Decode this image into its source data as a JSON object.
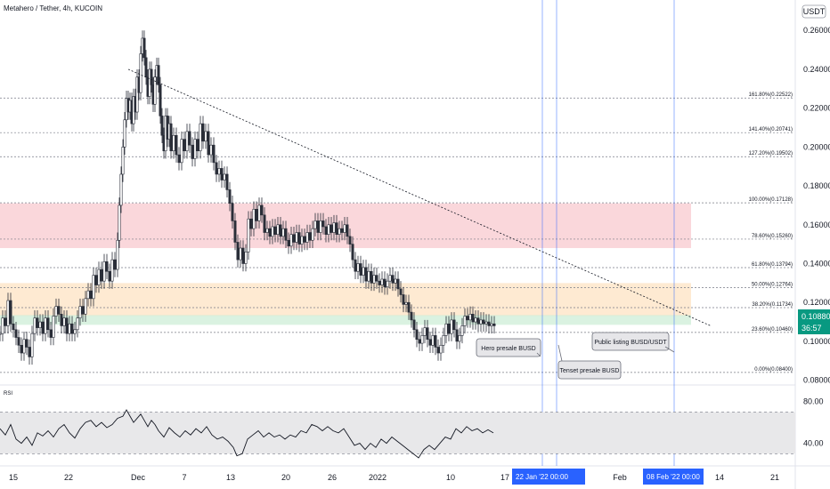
{
  "header": {
    "symbol_line": "Metahero / Tether, 4h, KUCOIN"
  },
  "currency_badge": "USDT",
  "colors": {
    "up": "#26a69a",
    "down": "#131722",
    "candle": "#2a2e39",
    "red_zone": "#f8c9cf",
    "orange_zone": "#fde3c3",
    "green_zone": "#cdeed7",
    "accent": "#2962ff",
    "rsi_band": "#e8e8ea",
    "price_label": "#089981"
  },
  "chart_data": [
    {
      "type": "candlestick",
      "title": "Metahero / Tether, 4h, KUCOIN",
      "y_axis": {
        "range": [
          0.078,
          0.272
        ],
        "ticks": [
          0.08,
          0.1,
          0.12,
          0.14,
          0.16,
          0.18,
          0.2,
          0.22,
          0.24,
          0.26
        ],
        "tick_labels": [
          "0.08000",
          "0.10000",
          "0.12000",
          "0.14000",
          "0.16000",
          "0.18000",
          "0.20000",
          "0.22000",
          "0.24000",
          "0.26000"
        ]
      },
      "x_axis": {
        "tick_labels": [
          "15",
          "22",
          "Dec",
          "7",
          "13",
          "20",
          "26",
          "2022",
          "10",
          "17",
          "Feb",
          "14",
          "21"
        ],
        "cursor_labels": [
          "22 Jan '22   00:00",
          "08 Feb '22   00:00"
        ]
      },
      "last_price": {
        "value": "0.10880",
        "countdown": "36:57"
      },
      "close_series": [
        [
          0,
          0.104
        ],
        [
          3,
          0.112
        ],
        [
          6,
          0.108
        ],
        [
          9,
          0.121
        ],
        [
          12,
          0.109
        ],
        [
          15,
          0.106
        ],
        [
          18,
          0.102
        ],
        [
          21,
          0.098
        ],
        [
          24,
          0.094
        ],
        [
          27,
          0.101
        ],
        [
          30,
          0.097
        ],
        [
          33,
          0.092
        ],
        [
          36,
          0.104
        ],
        [
          39,
          0.112
        ],
        [
          42,
          0.107
        ],
        [
          45,
          0.11
        ],
        [
          48,
          0.104
        ],
        [
          51,
          0.112
        ],
        [
          54,
          0.106
        ],
        [
          57,
          0.102
        ],
        [
          60,
          0.113
        ],
        [
          63,
          0.118
        ],
        [
          66,
          0.114
        ],
        [
          69,
          0.108
        ],
        [
          72,
          0.112
        ],
        [
          75,
          0.104
        ],
        [
          78,
          0.109
        ],
        [
          81,
          0.104
        ],
        [
          84,
          0.106
        ],
        [
          87,
          0.112
        ],
        [
          90,
          0.118
        ],
        [
          93,
          0.114
        ],
        [
          96,
          0.122
        ],
        [
          99,
          0.126
        ],
        [
          102,
          0.122
        ],
        [
          105,
          0.134
        ],
        [
          108,
          0.129
        ],
        [
          111,
          0.137
        ],
        [
          114,
          0.131
        ],
        [
          117,
          0.141
        ],
        [
          120,
          0.136
        ],
        [
          123,
          0.131
        ],
        [
          126,
          0.142
        ],
        [
          129,
          0.137
        ],
        [
          132,
          0.152
        ],
        [
          134,
          0.17
        ],
        [
          136,
          0.186
        ],
        [
          138,
          0.2
        ],
        [
          140,
          0.214
        ],
        [
          142,
          0.225
        ],
        [
          144,
          0.218
        ],
        [
          146,
          0.224
        ],
        [
          148,
          0.212
        ],
        [
          150,
          0.226
        ],
        [
          152,
          0.218
        ],
        [
          154,
          0.236
        ],
        [
          156,
          0.228
        ],
        [
          158,
          0.248
        ],
        [
          160,
          0.256
        ],
        [
          162,
          0.246
        ],
        [
          164,
          0.236
        ],
        [
          166,
          0.226
        ],
        [
          168,
          0.24
        ],
        [
          170,
          0.232
        ],
        [
          172,
          0.222
        ],
        [
          174,
          0.236
        ],
        [
          176,
          0.242
        ],
        [
          178,
          0.232
        ],
        [
          180,
          0.216
        ],
        [
          182,
          0.206
        ],
        [
          184,
          0.198
        ],
        [
          186,
          0.216
        ],
        [
          188,
          0.204
        ],
        [
          190,
          0.212
        ],
        [
          192,
          0.198
        ],
        [
          195,
          0.206
        ],
        [
          198,
          0.196
        ],
        [
          201,
          0.192
        ],
        [
          204,
          0.204
        ],
        [
          207,
          0.198
        ],
        [
          210,
          0.208
        ],
        [
          213,
          0.201
        ],
        [
          216,
          0.194
        ],
        [
          219,
          0.204
        ],
        [
          222,
          0.198
        ],
        [
          225,
          0.212
        ],
        [
          228,
          0.203
        ],
        [
          231,
          0.208
        ],
        [
          234,
          0.196
        ],
        [
          237,
          0.201
        ],
        [
          240,
          0.192
        ],
        [
          243,
          0.186
        ],
        [
          246,
          0.189
        ],
        [
          249,
          0.183
        ],
        [
          252,
          0.186
        ],
        [
          255,
          0.178
        ],
        [
          258,
          0.171
        ],
        [
          261,
          0.162
        ],
        [
          264,
          0.151
        ],
        [
          267,
          0.142
        ],
        [
          270,
          0.148
        ],
        [
          273,
          0.14
        ],
        [
          276,
          0.146
        ],
        [
          279,
          0.163
        ],
        [
          282,
          0.158
        ],
        [
          285,
          0.168
        ],
        [
          288,
          0.162
        ],
        [
          291,
          0.17
        ],
        [
          294,
          0.165
        ],
        [
          297,
          0.156
        ],
        [
          300,
          0.158
        ],
        [
          303,
          0.154
        ],
        [
          306,
          0.159
        ],
        [
          309,
          0.155
        ],
        [
          312,
          0.16
        ],
        [
          315,
          0.154
        ],
        [
          318,
          0.158
        ],
        [
          321,
          0.152
        ],
        [
          324,
          0.149
        ],
        [
          327,
          0.155
        ],
        [
          330,
          0.151
        ],
        [
          333,
          0.156
        ],
        [
          336,
          0.15
        ],
        [
          339,
          0.154
        ],
        [
          342,
          0.151
        ],
        [
          345,
          0.156
        ],
        [
          348,
          0.152
        ],
        [
          351,
          0.158
        ],
        [
          354,
          0.162
        ],
        [
          357,
          0.156
        ],
        [
          360,
          0.162
        ],
        [
          363,
          0.159
        ],
        [
          366,
          0.155
        ],
        [
          369,
          0.16
        ],
        [
          372,
          0.156
        ],
        [
          375,
          0.161
        ],
        [
          378,
          0.155
        ],
        [
          381,
          0.158
        ],
        [
          384,
          0.156
        ],
        [
          387,
          0.16
        ],
        [
          390,
          0.154
        ],
        [
          393,
          0.15
        ],
        [
          396,
          0.142
        ],
        [
          399,
          0.136
        ],
        [
          402,
          0.14
        ],
        [
          405,
          0.134
        ],
        [
          408,
          0.138
        ],
        [
          411,
          0.131
        ],
        [
          414,
          0.136
        ],
        [
          417,
          0.13
        ],
        [
          420,
          0.134
        ],
        [
          423,
          0.131
        ],
        [
          426,
          0.129
        ],
        [
          429,
          0.132
        ],
        [
          432,
          0.128
        ],
        [
          435,
          0.131
        ],
        [
          438,
          0.134
        ],
        [
          441,
          0.13
        ],
        [
          444,
          0.132
        ],
        [
          447,
          0.127
        ],
        [
          450,
          0.124
        ],
        [
          453,
          0.119
        ],
        [
          456,
          0.12
        ],
        [
          459,
          0.115
        ],
        [
          462,
          0.111
        ],
        [
          465,
          0.106
        ],
        [
          468,
          0.101
        ],
        [
          471,
          0.099
        ],
        [
          474,
          0.103
        ],
        [
          477,
          0.107
        ],
        [
          480,
          0.101
        ],
        [
          483,
          0.098
        ],
        [
          486,
          0.103
        ],
        [
          489,
          0.097
        ],
        [
          492,
          0.094
        ],
        [
          495,
          0.098
        ],
        [
          498,
          0.103
        ],
        [
          501,
          0.109
        ],
        [
          504,
          0.104
        ],
        [
          507,
          0.111
        ],
        [
          510,
          0.106
        ],
        [
          513,
          0.1
        ],
        [
          516,
          0.103
        ],
        [
          519,
          0.108
        ],
        [
          522,
          0.113
        ],
        [
          525,
          0.111
        ],
        [
          528,
          0.114
        ],
        [
          531,
          0.11
        ],
        [
          534,
          0.112
        ],
        [
          537,
          0.109
        ],
        [
          540,
          0.111
        ],
        [
          543,
          0.109
        ],
        [
          546,
          0.11
        ],
        [
          549,
          0.108
        ],
        [
          552,
          0.109
        ],
        [
          555,
          0.108
        ]
      ],
      "rsi": {
        "label": "RSI",
        "y_axis": {
          "range": [
            20,
            90
          ],
          "tick_labels": [
            "80.00",
            "40.00"
          ],
          "ticks": [
            80,
            40
          ]
        },
        "band": [
          30,
          70
        ],
        "values": [
          [
            0,
            54
          ],
          [
            6,
            48
          ],
          [
            12,
            58
          ],
          [
            18,
            44
          ],
          [
            24,
            40
          ],
          [
            30,
            46
          ],
          [
            36,
            38
          ],
          [
            42,
            50
          ],
          [
            48,
            47
          ],
          [
            54,
            52
          ],
          [
            60,
            46
          ],
          [
            66,
            54
          ],
          [
            72,
            58
          ],
          [
            78,
            50
          ],
          [
            84,
            45
          ],
          [
            90,
            54
          ],
          [
            96,
            60
          ],
          [
            102,
            62
          ],
          [
            108,
            56
          ],
          [
            114,
            60
          ],
          [
            120,
            55
          ],
          [
            126,
            58
          ],
          [
            132,
            64
          ],
          [
            138,
            66
          ],
          [
            142,
            72
          ],
          [
            146,
            66
          ],
          [
            150,
            60
          ],
          [
            154,
            64
          ],
          [
            158,
            68
          ],
          [
            162,
            62
          ],
          [
            166,
            56
          ],
          [
            170,
            62
          ],
          [
            174,
            58
          ],
          [
            178,
            52
          ],
          [
            184,
            46
          ],
          [
            190,
            55
          ],
          [
            196,
            50
          ],
          [
            202,
            46
          ],
          [
            208,
            52
          ],
          [
            214,
            48
          ],
          [
            220,
            54
          ],
          [
            226,
            50
          ],
          [
            232,
            56
          ],
          [
            238,
            48
          ],
          [
            244,
            44
          ],
          [
            250,
            46
          ],
          [
            256,
            42
          ],
          [
            262,
            36
          ],
          [
            266,
            28
          ],
          [
            272,
            30
          ],
          [
            278,
            44
          ],
          [
            284,
            48
          ],
          [
            290,
            52
          ],
          [
            296,
            46
          ],
          [
            302,
            50
          ],
          [
            308,
            46
          ],
          [
            314,
            48
          ],
          [
            320,
            44
          ],
          [
            326,
            48
          ],
          [
            332,
            46
          ],
          [
            338,
            52
          ],
          [
            344,
            50
          ],
          [
            350,
            58
          ],
          [
            356,
            56
          ],
          [
            362,
            52
          ],
          [
            368,
            56
          ],
          [
            374,
            52
          ],
          [
            380,
            50
          ],
          [
            386,
            54
          ],
          [
            392,
            46
          ],
          [
            398,
            38
          ],
          [
            404,
            40
          ],
          [
            410,
            34
          ],
          [
            416,
            40
          ],
          [
            422,
            36
          ],
          [
            428,
            44
          ],
          [
            434,
            40
          ],
          [
            440,
            46
          ],
          [
            446,
            42
          ],
          [
            452,
            38
          ],
          [
            458,
            34
          ],
          [
            464,
            30
          ],
          [
            470,
            26
          ],
          [
            476,
            34
          ],
          [
            482,
            38
          ],
          [
            488,
            34
          ],
          [
            494,
            40
          ],
          [
            500,
            46
          ],
          [
            506,
            44
          ],
          [
            512,
            54
          ],
          [
            518,
            50
          ],
          [
            524,
            56
          ],
          [
            530,
            52
          ],
          [
            536,
            54
          ],
          [
            542,
            50
          ],
          [
            548,
            53
          ],
          [
            554,
            50
          ]
        ]
      },
      "zones": [
        {
          "name": "red",
          "from": 0.148,
          "to": 0.171
        },
        {
          "name": "orange",
          "from": 0.113,
          "to": 0.13
        },
        {
          "name": "green",
          "from": 0.1085,
          "to": 0.1135
        }
      ],
      "fib_levels": [
        {
          "label": "161.80%(0.22522)",
          "value": 0.22522
        },
        {
          "label": "141.40%(0.20741)",
          "value": 0.20741
        },
        {
          "label": "127.20%(0.19502)",
          "value": 0.19502
        },
        {
          "label": "100.00%(0.17128)",
          "value": 0.17128
        },
        {
          "label": "78.60%(0.15260)",
          "value": 0.1526
        },
        {
          "label": "61.80%(0.13794)",
          "value": 0.13794
        },
        {
          "label": "50.00%(0.12764)",
          "value": 0.12764
        },
        {
          "label": "38.20%(0.11734)",
          "value": 0.11734
        },
        {
          "label": "23.60%(0.10460)",
          "value": 0.1046
        },
        {
          "label": "0.00%(0.08400)",
          "value": 0.084
        }
      ],
      "trendline": {
        "from": [
          144,
          0.24
        ],
        "to": [
          798,
          0.108
        ]
      },
      "annotations": [
        {
          "text": "Hero presale BUSD"
        },
        {
          "text": "Tenset presale BUSD"
        },
        {
          "text": "Public listing BUSD/USDT"
        }
      ]
    }
  ]
}
